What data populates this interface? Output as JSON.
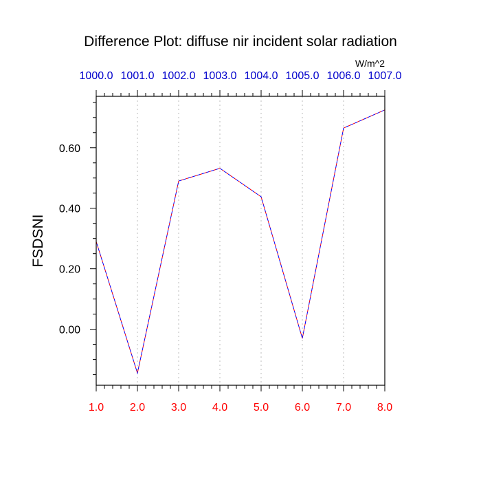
{
  "chart_data": {
    "type": "line",
    "title": "Difference Plot: diffuse nir incident solar radiation",
    "units": "W/m^2",
    "ylabel": "FSDSNI",
    "xlabel": "",
    "x": [
      1.0,
      2.0,
      3.0,
      4.0,
      5.0,
      6.0,
      7.0,
      8.0
    ],
    "xlim": [
      1.0,
      8.0
    ],
    "ylim": [
      -0.185,
      0.77
    ],
    "x_tick_labels_bottom": [
      "1.0",
      "2.0",
      "3.0",
      "4.0",
      "5.0",
      "6.0",
      "7.0",
      "8.0"
    ],
    "x_tick_labels_top": [
      "1000.0",
      "1001.0",
      "1002.0",
      "1003.0",
      "1004.0",
      "1005.0",
      "1006.0",
      "1007.0"
    ],
    "y_ticks": [
      0.0,
      0.2,
      0.4,
      0.6
    ],
    "y_tick_labels": [
      "0.00",
      "0.20",
      "0.40",
      "0.60"
    ],
    "grid": "vertical dotted",
    "series": [
      {
        "values": [
          0.29,
          -0.145,
          0.49,
          0.532,
          0.438,
          -0.03,
          0.665,
          0.725
        ],
        "style": "dashed"
      }
    ],
    "colors": {
      "bottom_ticks": "#ff0000",
      "top_ticks": "#0000cc",
      "line_primary": "#ff0000",
      "line_secondary": "#0000ff",
      "grid": "#bbbbbb"
    }
  }
}
